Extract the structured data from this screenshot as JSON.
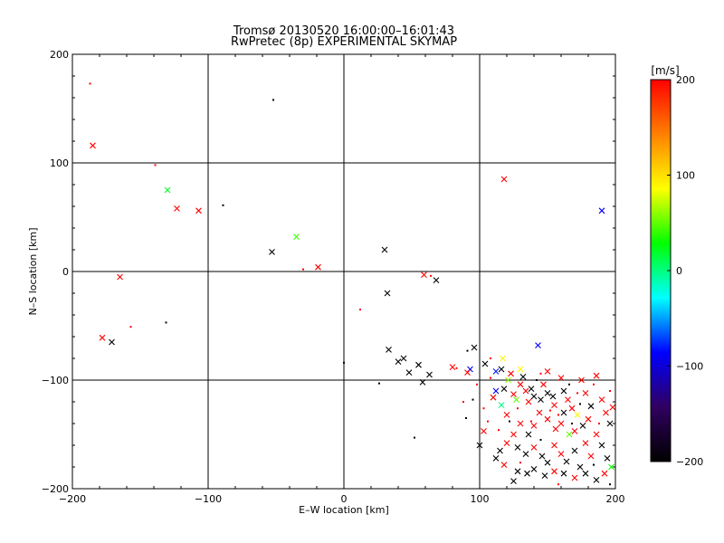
{
  "chart_data": [
    {
      "type": "scatter",
      "title": "Tromsø 20130520 16:00:00–16:01:43",
      "subtitle": "RwPretec (8p) EXPERIMENTAL SKYMAP",
      "xlabel": "E–W location [km]",
      "ylabel": "N–S location [km]",
      "xlim": [
        -200,
        200
      ],
      "ylim": [
        -200,
        200
      ],
      "xticks": [
        -200,
        -100,
        0,
        100,
        200
      ],
      "yticks": [
        -200,
        -100,
        0,
        100,
        200
      ],
      "grid": true,
      "color_scale": {
        "label": "[m/s]",
        "range": [
          -200,
          200
        ],
        "ticks": [
          -200,
          -100,
          0,
          100,
          200
        ],
        "stops": [
          "#000000",
          "#300060",
          "#0000ff",
          "#00ffff",
          "#00ff00",
          "#ffff00",
          "#ff8000",
          "#ff0000"
        ]
      },
      "points": [
        {
          "x": -187,
          "y": 173,
          "v": 200,
          "m": "dot"
        },
        {
          "x": -185,
          "y": 116,
          "v": 200,
          "m": "x"
        },
        {
          "x": -52,
          "y": 158,
          "v": -200,
          "m": "dot"
        },
        {
          "x": -139,
          "y": 98,
          "v": 200,
          "m": "dot"
        },
        {
          "x": -130,
          "y": 75,
          "v": 20,
          "m": "x"
        },
        {
          "x": -123,
          "y": 58,
          "v": 200,
          "m": "x"
        },
        {
          "x": -107,
          "y": 56,
          "v": 200,
          "m": "x"
        },
        {
          "x": -89,
          "y": 61,
          "v": -200,
          "m": "dot"
        },
        {
          "x": -53,
          "y": 18,
          "v": -200,
          "m": "x"
        },
        {
          "x": -35,
          "y": 32,
          "v": 40,
          "m": "x"
        },
        {
          "x": -30,
          "y": 2,
          "v": 200,
          "m": "dot"
        },
        {
          "x": -19,
          "y": 4,
          "v": 200,
          "m": "x"
        },
        {
          "x": 30,
          "y": 20,
          "v": -200,
          "m": "x"
        },
        {
          "x": 118,
          "y": 85,
          "v": 200,
          "m": "x"
        },
        {
          "x": 190,
          "y": 56,
          "v": -90,
          "m": "x"
        },
        {
          "x": -165,
          "y": -5,
          "v": 200,
          "m": "x"
        },
        {
          "x": -178,
          "y": -61,
          "v": 200,
          "m": "x"
        },
        {
          "x": -171,
          "y": -65,
          "v": -200,
          "m": "x"
        },
        {
          "x": -157,
          "y": -51,
          "v": 200,
          "m": "dot"
        },
        {
          "x": -131,
          "y": -47,
          "v": -200,
          "m": "dot"
        },
        {
          "x": 12,
          "y": -35,
          "v": 200,
          "m": "dot"
        },
        {
          "x": 32,
          "y": -20,
          "v": -200,
          "m": "x"
        },
        {
          "x": 59,
          "y": -3,
          "v": 200,
          "m": "x"
        },
        {
          "x": 68,
          "y": -8,
          "v": -200,
          "m": "x"
        },
        {
          "x": 64,
          "y": -4,
          "v": 200,
          "m": "dot"
        },
        {
          "x": 0,
          "y": -84,
          "v": -200,
          "m": "dot"
        },
        {
          "x": 26,
          "y": -103,
          "v": -200,
          "m": "dot"
        },
        {
          "x": 33,
          "y": -72,
          "v": -200,
          "m": "x"
        },
        {
          "x": 40,
          "y": -83,
          "v": -200,
          "m": "x"
        },
        {
          "x": 44,
          "y": -80,
          "v": -200,
          "m": "x"
        },
        {
          "x": 48,
          "y": -93,
          "v": -200,
          "m": "x"
        },
        {
          "x": 55,
          "y": -86,
          "v": -200,
          "m": "x"
        },
        {
          "x": 58,
          "y": -102,
          "v": -200,
          "m": "x"
        },
        {
          "x": 63,
          "y": -95,
          "v": -200,
          "m": "x"
        },
        {
          "x": 52,
          "y": -153,
          "v": -200,
          "m": "dot"
        },
        {
          "x": 80,
          "y": -88,
          "v": 200,
          "m": "x"
        },
        {
          "x": 83,
          "y": -89,
          "v": 200,
          "m": "dot"
        },
        {
          "x": 91,
          "y": -73,
          "v": -200,
          "m": "dot"
        },
        {
          "x": 96,
          "y": -70,
          "v": -200,
          "m": "x"
        },
        {
          "x": 93,
          "y": -90,
          "v": -90,
          "m": "x"
        },
        {
          "x": 91,
          "y": -93,
          "v": 200,
          "m": "x"
        },
        {
          "x": 104,
          "y": -85,
          "v": -200,
          "m": "x"
        },
        {
          "x": 98,
          "y": -104,
          "v": 200,
          "m": "dot"
        },
        {
          "x": 95,
          "y": -118,
          "v": -200,
          "m": "dot"
        },
        {
          "x": 90,
          "y": -135,
          "v": -200,
          "m": "dot"
        },
        {
          "x": 88,
          "y": -120,
          "v": 200,
          "m": "dot"
        },
        {
          "x": 100,
          "y": -160,
          "v": -200,
          "m": "x"
        },
        {
          "x": 103,
          "y": -147,
          "v": 200,
          "m": "x"
        },
        {
          "x": 108,
          "y": -80,
          "v": 200,
          "m": "dot"
        },
        {
          "x": 112,
          "y": -92,
          "v": -80,
          "m": "x"
        },
        {
          "x": 116,
          "y": -90,
          "v": -200,
          "m": "x"
        },
        {
          "x": 117,
          "y": -80,
          "v": 90,
          "m": "x"
        },
        {
          "x": 112,
          "y": -110,
          "v": -90,
          "m": "x"
        },
        {
          "x": 116,
          "y": -123,
          "v": 0,
          "m": "x"
        },
        {
          "x": 110,
          "y": -116,
          "v": 200,
          "m": "x"
        },
        {
          "x": 118,
          "y": -108,
          "v": -200,
          "m": "x"
        },
        {
          "x": 121,
          "y": -100,
          "v": 60,
          "m": "x"
        },
        {
          "x": 123,
          "y": -94,
          "v": 200,
          "m": "x"
        },
        {
          "x": 125,
          "y": -113,
          "v": 200,
          "m": "x"
        },
        {
          "x": 127,
          "y": -118,
          "v": 50,
          "m": "x"
        },
        {
          "x": 120,
          "y": -132,
          "v": 200,
          "m": "x"
        },
        {
          "x": 106,
          "y": -138,
          "v": 200,
          "m": "dot"
        },
        {
          "x": 103,
          "y": -126,
          "v": 200,
          "m": "dot"
        },
        {
          "x": 130,
          "y": -90,
          "v": 90,
          "m": "x"
        },
        {
          "x": 132,
          "y": -97,
          "v": -200,
          "m": "x"
        },
        {
          "x": 130,
          "y": -104,
          "v": 200,
          "m": "x"
        },
        {
          "x": 134,
          "y": -110,
          "v": 200,
          "m": "x"
        },
        {
          "x": 138,
          "y": -108,
          "v": -200,
          "m": "x"
        },
        {
          "x": 136,
          "y": -120,
          "v": 200,
          "m": "x"
        },
        {
          "x": 140,
          "y": -115,
          "v": -200,
          "m": "x"
        },
        {
          "x": 143,
          "y": -68,
          "v": -90,
          "m": "x"
        },
        {
          "x": 145,
          "y": -94,
          "v": 200,
          "m": "dot"
        },
        {
          "x": 150,
          "y": -92,
          "v": 200,
          "m": "x"
        },
        {
          "x": 147,
          "y": -104,
          "v": 200,
          "m": "x"
        },
        {
          "x": 150,
          "y": -112,
          "v": -200,
          "m": "x"
        },
        {
          "x": 145,
          "y": -118,
          "v": -200,
          "m": "x"
        },
        {
          "x": 154,
          "y": -115,
          "v": -200,
          "m": "x"
        },
        {
          "x": 155,
          "y": -123,
          "v": 200,
          "m": "x"
        },
        {
          "x": 160,
          "y": -98,
          "v": 200,
          "m": "x"
        },
        {
          "x": 162,
          "y": -110,
          "v": -200,
          "m": "x"
        },
        {
          "x": 165,
          "y": -118,
          "v": 200,
          "m": "x"
        },
        {
          "x": 168,
          "y": -126,
          "v": 200,
          "m": "x"
        },
        {
          "x": 162,
          "y": -130,
          "v": -200,
          "m": "x"
        },
        {
          "x": 172,
          "y": -132,
          "v": 90,
          "m": "x"
        },
        {
          "x": 175,
          "y": -100,
          "v": 200,
          "m": "x"
        },
        {
          "x": 178,
          "y": -112,
          "v": 200,
          "m": "x"
        },
        {
          "x": 182,
          "y": -124,
          "v": -200,
          "m": "x"
        },
        {
          "x": 186,
          "y": -96,
          "v": 200,
          "m": "x"
        },
        {
          "x": 190,
          "y": -118,
          "v": 200,
          "m": "x"
        },
        {
          "x": 193,
          "y": -130,
          "v": 200,
          "m": "x"
        },
        {
          "x": 196,
          "y": -140,
          "v": -200,
          "m": "x"
        },
        {
          "x": 198,
          "y": -125,
          "v": 200,
          "m": "x"
        },
        {
          "x": 180,
          "y": -136,
          "v": 200,
          "m": "x"
        },
        {
          "x": 176,
          "y": -142,
          "v": -200,
          "m": "x"
        },
        {
          "x": 170,
          "y": -147,
          "v": 200,
          "m": "x"
        },
        {
          "x": 166,
          "y": -150,
          "v": 50,
          "m": "x"
        },
        {
          "x": 160,
          "y": -140,
          "v": 200,
          "m": "x"
        },
        {
          "x": 156,
          "y": -145,
          "v": 200,
          "m": "x"
        },
        {
          "x": 150,
          "y": -136,
          "v": 200,
          "m": "x"
        },
        {
          "x": 144,
          "y": -130,
          "v": 200,
          "m": "x"
        },
        {
          "x": 140,
          "y": -142,
          "v": 200,
          "m": "x"
        },
        {
          "x": 136,
          "y": -150,
          "v": -200,
          "m": "x"
        },
        {
          "x": 130,
          "y": -140,
          "v": 200,
          "m": "x"
        },
        {
          "x": 125,
          "y": -150,
          "v": 200,
          "m": "x"
        },
        {
          "x": 120,
          "y": -158,
          "v": 200,
          "m": "x"
        },
        {
          "x": 115,
          "y": -165,
          "v": -200,
          "m": "x"
        },
        {
          "x": 128,
          "y": -162,
          "v": -200,
          "m": "x"
        },
        {
          "x": 134,
          "y": -168,
          "v": -200,
          "m": "x"
        },
        {
          "x": 140,
          "y": -162,
          "v": 200,
          "m": "x"
        },
        {
          "x": 146,
          "y": -170,
          "v": -200,
          "m": "x"
        },
        {
          "x": 150,
          "y": -176,
          "v": -200,
          "m": "x"
        },
        {
          "x": 155,
          "y": -160,
          "v": 200,
          "m": "x"
        },
        {
          "x": 160,
          "y": -168,
          "v": 200,
          "m": "x"
        },
        {
          "x": 164,
          "y": -175,
          "v": -200,
          "m": "x"
        },
        {
          "x": 170,
          "y": -165,
          "v": -200,
          "m": "x"
        },
        {
          "x": 174,
          "y": -180,
          "v": -200,
          "m": "x"
        },
        {
          "x": 178,
          "y": -158,
          "v": 200,
          "m": "x"
        },
        {
          "x": 182,
          "y": -170,
          "v": 200,
          "m": "x"
        },
        {
          "x": 186,
          "y": -150,
          "v": 200,
          "m": "x"
        },
        {
          "x": 190,
          "y": -160,
          "v": -200,
          "m": "x"
        },
        {
          "x": 194,
          "y": -172,
          "v": -200,
          "m": "x"
        },
        {
          "x": 197,
          "y": -180,
          "v": 30,
          "m": "x"
        },
        {
          "x": 192,
          "y": -186,
          "v": 200,
          "m": "x"
        },
        {
          "x": 186,
          "y": -192,
          "v": -200,
          "m": "x"
        },
        {
          "x": 178,
          "y": -186,
          "v": -200,
          "m": "x"
        },
        {
          "x": 170,
          "y": -190,
          "v": 200,
          "m": "x"
        },
        {
          "x": 162,
          "y": -186,
          "v": -200,
          "m": "x"
        },
        {
          "x": 155,
          "y": -184,
          "v": 200,
          "m": "x"
        },
        {
          "x": 148,
          "y": -188,
          "v": -200,
          "m": "x"
        },
        {
          "x": 140,
          "y": -182,
          "v": -200,
          "m": "x"
        },
        {
          "x": 135,
          "y": -186,
          "v": -200,
          "m": "x"
        },
        {
          "x": 128,
          "y": -184,
          "v": -200,
          "m": "x"
        },
        {
          "x": 125,
          "y": -193,
          "v": -200,
          "m": "x"
        },
        {
          "x": 118,
          "y": -178,
          "v": 200,
          "m": "x"
        },
        {
          "x": 112,
          "y": -172,
          "v": -200,
          "m": "x"
        },
        {
          "x": 130,
          "y": -176,
          "v": 200,
          "m": "dot"
        },
        {
          "x": 145,
          "y": -155,
          "v": -200,
          "m": "dot"
        },
        {
          "x": 152,
          "y": -128,
          "v": 200,
          "m": "dot"
        },
        {
          "x": 158,
          "y": -132,
          "v": 200,
          "m": "dot"
        },
        {
          "x": 172,
          "y": -112,
          "v": 200,
          "m": "dot"
        },
        {
          "x": 184,
          "y": -104,
          "v": 200,
          "m": "dot"
        },
        {
          "x": 188,
          "y": -140,
          "v": 200,
          "m": "dot"
        },
        {
          "x": 196,
          "y": -110,
          "v": 200,
          "m": "dot"
        },
        {
          "x": 174,
          "y": -122,
          "v": -200,
          "m": "dot"
        },
        {
          "x": 166,
          "y": -104,
          "v": -200,
          "m": "dot"
        },
        {
          "x": 142,
          "y": -100,
          "v": -200,
          "m": "dot"
        },
        {
          "x": 128,
          "y": -126,
          "v": 200,
          "m": "dot"
        },
        {
          "x": 114,
          "y": -146,
          "v": 200,
          "m": "dot"
        },
        {
          "x": 108,
          "y": -98,
          "v": 200,
          "m": "dot"
        },
        {
          "x": 122,
          "y": -138,
          "v": -200,
          "m": "dot"
        },
        {
          "x": 138,
          "y": -138,
          "v": 200,
          "m": "dot"
        },
        {
          "x": 168,
          "y": -140,
          "v": -200,
          "m": "dot"
        },
        {
          "x": 184,
          "y": -178,
          "v": -200,
          "m": "dot"
        },
        {
          "x": 196,
          "y": -196,
          "v": -200,
          "m": "dot"
        },
        {
          "x": 158,
          "y": -196,
          "v": 200,
          "m": "dot"
        }
      ]
    }
  ]
}
